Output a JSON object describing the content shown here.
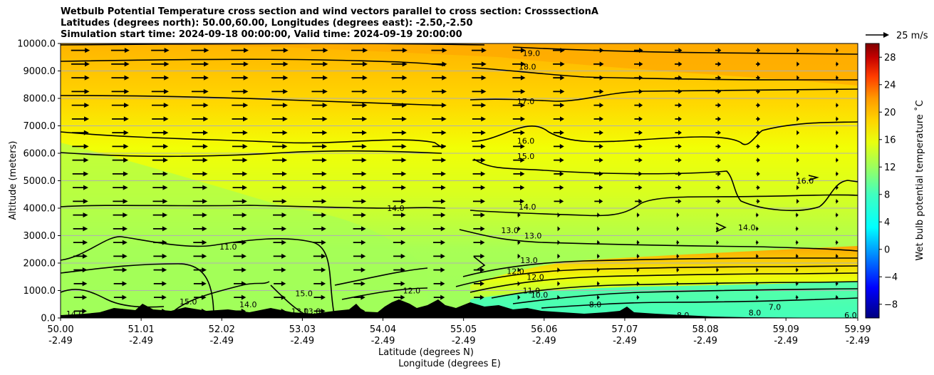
{
  "title_lines": [
    "Wetbulb Potential Temperature cross section and wind vectors parallel to cross section: CrosssectionA",
    "Latitudes (degrees north): 50.00,60.00, Longitudes (degrees east): -2.50,-2.50",
    "Simulation start time: 2024-09-18 00:00:00, Valid time: 2024-09-19 20:00:00"
  ],
  "chart_data": {
    "type": "heatmap",
    "ylabel": "Altitude (meters)",
    "xlabel_lines": [
      "Latitude (degrees N)",
      "Longitude (degrees E)"
    ],
    "xlim": [
      50.0,
      59.99
    ],
    "ylim": [
      0,
      10000
    ],
    "x_ticks": [
      {
        "lat": "50.00",
        "lon": "-2.49",
        "value": 50.0
      },
      {
        "lat": "51.01",
        "lon": "-2.49",
        "value": 51.01
      },
      {
        "lat": "52.02",
        "lon": "-2.49",
        "value": 52.02
      },
      {
        "lat": "53.03",
        "lon": "-2.49",
        "value": 53.03
      },
      {
        "lat": "54.04",
        "lon": "-2.49",
        "value": 54.04
      },
      {
        "lat": "55.05",
        "lon": "-2.49",
        "value": 55.05
      },
      {
        "lat": "56.06",
        "lon": "-2.49",
        "value": 56.06
      },
      {
        "lat": "57.07",
        "lon": "-2.49",
        "value": 57.07
      },
      {
        "lat": "58.08",
        "lon": "-2.49",
        "value": 58.08
      },
      {
        "lat": "59.09",
        "lon": "-2.49",
        "value": 59.09
      },
      {
        "lat": "59.99",
        "lon": "-2.49",
        "value": 59.99
      }
    ],
    "y_ticks": [
      {
        "label": "0.0",
        "value": 0
      },
      {
        "label": "1000.0",
        "value": 1000
      },
      {
        "label": "2000.0",
        "value": 2000
      },
      {
        "label": "3000.0",
        "value": 3000
      },
      {
        "label": "4000.0",
        "value": 4000
      },
      {
        "label": "5000.0",
        "value": 5000
      },
      {
        "label": "6000.0",
        "value": 6000
      },
      {
        "label": "7000.0",
        "value": 7000
      },
      {
        "label": "8000.0",
        "value": 8000
      },
      {
        "label": "9000.0",
        "value": 9000
      },
      {
        "label": "10000.0",
        "value": 10000
      }
    ],
    "grid": "horizontal",
    "colorbar": {
      "label": "Wet bulb potential temperature ˚C",
      "range": [
        -10,
        30
      ],
      "ticks": [
        {
          "label": "−8",
          "value": -8
        },
        {
          "label": "−4",
          "value": -4
        },
        {
          "label": "0",
          "value": 0
        },
        {
          "label": "4",
          "value": 4
        },
        {
          "label": "8",
          "value": 8
        },
        {
          "label": "12",
          "value": 12
        },
        {
          "label": "16",
          "value": 16
        },
        {
          "label": "20",
          "value": 20
        },
        {
          "label": "24",
          "value": 24
        },
        {
          "label": "28",
          "value": 28
        }
      ],
      "colors": [
        "#00007f",
        "#0000ff",
        "#007fff",
        "#00ffff",
        "#40ffbf",
        "#9cff5e",
        "#e8ff0f",
        "#ffd400",
        "#ff9a00",
        "#ff3c00",
        "#c30000",
        "#7f0000"
      ]
    },
    "wind_key_label": "25 m/s",
    "contour_labels": [
      {
        "text": "19.0",
        "x": 55.9,
        "y": 9650
      },
      {
        "text": "18.0",
        "x": 55.85,
        "y": 9150
      },
      {
        "text": "17.0",
        "x": 55.83,
        "y": 7900
      },
      {
        "text": "16.0",
        "x": 55.83,
        "y": 6450
      },
      {
        "text": "15.0",
        "x": 55.83,
        "y": 5900
      },
      {
        "text": "16.0",
        "x": 59.33,
        "y": 5000
      },
      {
        "text": "14.0",
        "x": 54.2,
        "y": 4000
      },
      {
        "text": "14.0",
        "x": 55.85,
        "y": 4050
      },
      {
        "text": "14.0",
        "x": 58.6,
        "y": 3300
      },
      {
        "text": "13.0",
        "x": 55.63,
        "y": 3200
      },
      {
        "text": "13.0",
        "x": 55.92,
        "y": 3000
      },
      {
        "text": "11.0",
        "x": 52.1,
        "y": 2600
      },
      {
        "text": "13.0",
        "x": 55.87,
        "y": 2100
      },
      {
        "text": "12.0",
        "x": 55.7,
        "y": 1700
      },
      {
        "text": "12.0",
        "x": 55.95,
        "y": 1500
      },
      {
        "text": "11.0",
        "x": 55.9,
        "y": 1000
      },
      {
        "text": "12.0",
        "x": 54.4,
        "y": 1000
      },
      {
        "text": "10.0",
        "x": 56.0,
        "y": 850
      },
      {
        "text": "8.0",
        "x": 56.7,
        "y": 500
      },
      {
        "text": "8.0",
        "x": 57.8,
        "y": 100
      },
      {
        "text": "8.0",
        "x": 58.7,
        "y": 200
      },
      {
        "text": "7.0",
        "x": 58.95,
        "y": 400
      },
      {
        "text": "14.0",
        "x": 50.18,
        "y": 150
      },
      {
        "text": "15.0",
        "x": 50.8,
        "y": 150
      },
      {
        "text": "15.0",
        "x": 51.6,
        "y": 600
      },
      {
        "text": "14.0",
        "x": 52.35,
        "y": 500
      },
      {
        "text": "13.0",
        "x": 53.15,
        "y": 250
      },
      {
        "text": "15.0",
        "x": 53.05,
        "y": 900
      },
      {
        "text": "13.0",
        "x": 53.0,
        "y": 250
      },
      {
        "text": "6.0",
        "x": 59.9,
        "y": 100
      },
      {
        "text": "9.0",
        "x": 55.35,
        "y": 300
      }
    ]
  }
}
